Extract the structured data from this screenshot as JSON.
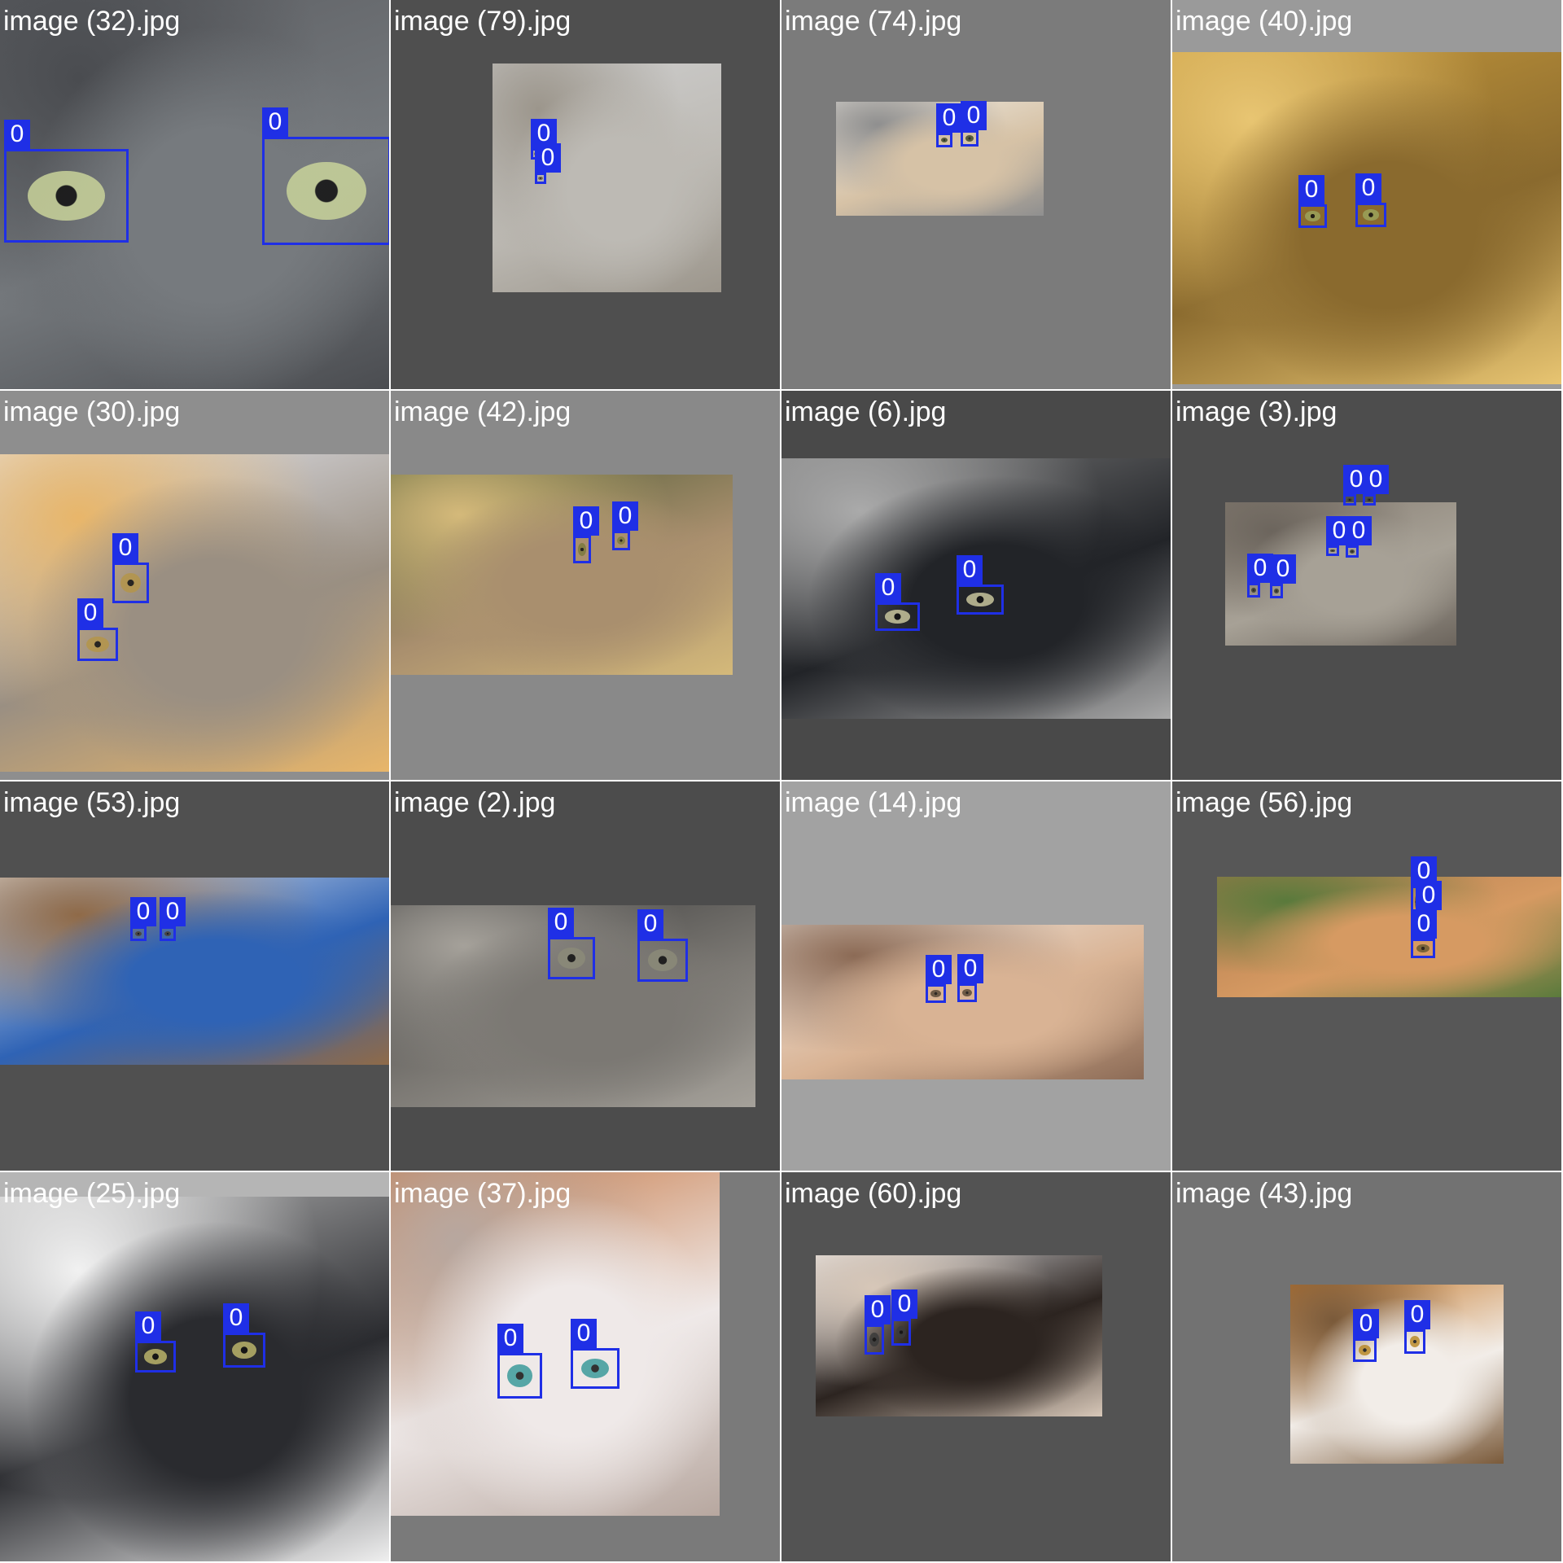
{
  "grid": {
    "cells": [
      {
        "caption": "image (32).jpg",
        "label_color": "#1f2fe6",
        "cell_bg": "#4e4e4e",
        "palette": [
          "#5c5e62",
          "#767a7e",
          "#4a4c50"
        ],
        "eye_color": "#c9d39a",
        "boxes": [
          {
            "label": "0"
          },
          {
            "label": "0"
          }
        ]
      },
      {
        "caption": "image (79).jpg",
        "label_color": "#1f2fe6",
        "cell_bg": "#4f4f4f",
        "palette": [
          "#cfcfcf",
          "#bdbab4",
          "#9c968c"
        ],
        "eye_color": "#6b6048",
        "boxes": [
          {
            "label": "0"
          },
          {
            "label": "0"
          }
        ]
      },
      {
        "caption": "image (74).jpg",
        "label_color": "#1f2fe6",
        "cell_bg": "#7b7b7b",
        "palette": [
          "#f1ede6",
          "#d6c2a6",
          "#8f8f8f"
        ],
        "eye_color": "#3f4a2a",
        "boxes": [
          {
            "label": "0"
          },
          {
            "label": "0"
          }
        ]
      },
      {
        "caption": "image (40).jpg",
        "label_color": "#1f2fe6",
        "cell_bg": "#9a9a9a",
        "palette": [
          "#c79a3c",
          "#8a6a2e",
          "#e8c572"
        ],
        "eye_color": "#9aa35a",
        "boxes": [
          {
            "label": "0"
          },
          {
            "label": "0"
          }
        ]
      },
      {
        "caption": "image (30).jpg",
        "label_color": "#1f2fe6",
        "cell_bg": "#8e8e8e",
        "palette": [
          "#e6e9f2",
          "#9a8f82",
          "#e8b66a"
        ],
        "eye_color": "#b4954a",
        "boxes": [
          {
            "label": "0"
          },
          {
            "label": "0"
          }
        ]
      },
      {
        "caption": "image (42).jpg",
        "label_color": "#1f2fe6",
        "cell_bg": "#898989",
        "palette": [
          "#4c5a33",
          "#a98f6e",
          "#d4b97a"
        ],
        "eye_color": "#7c7a3e",
        "boxes": [
          {
            "label": "0"
          },
          {
            "label": "0"
          }
        ]
      },
      {
        "caption": "image (6).jpg",
        "label_color": "#1f2fe6",
        "cell_bg": "#494949",
        "palette": [
          "#7d7d7d",
          "#222428",
          "#aaaaaa"
        ],
        "eye_color": "#c7c49c",
        "boxes": [
          {
            "label": "0"
          },
          {
            "label": "0"
          }
        ]
      },
      {
        "caption": "image (3).jpg",
        "label_color": "#1f2fe6",
        "cell_bg": "#4d4d4d",
        "palette": [
          "#867d72",
          "#a7a196",
          "#6c655d"
        ],
        "eye_color": "#3b3c2e",
        "boxes": [
          {
            "label": "0"
          },
          {
            "label": "0"
          },
          {
            "label": "0"
          },
          {
            "label": "0"
          },
          {
            "label": "0"
          },
          {
            "label": "0"
          }
        ]
      },
      {
        "caption": "image (53).jpg",
        "label_color": "#1f2fe6",
        "cell_bg": "#505050",
        "palette": [
          "#eef1f4",
          "#2f63b5",
          "#8f6a48"
        ],
        "eye_color": "#4a4034",
        "boxes": [
          {
            "label": "0"
          },
          {
            "label": "0"
          }
        ]
      },
      {
        "caption": "image (2).jpg",
        "label_color": "#1f2fe6",
        "cell_bg": "#4c4c4c",
        "palette": [
          "#3a3a3a",
          "#7b7873",
          "#a5a19a"
        ],
        "eye_color": "#8b8a78",
        "boxes": [
          {
            "label": "0"
          },
          {
            "label": "0"
          }
        ]
      },
      {
        "caption": "image (14).jpg",
        "label_color": "#1f2fe6",
        "cell_bg": "#a2a2a2",
        "palette": [
          "#f0ebe6",
          "#d9b394",
          "#8c6b56"
        ],
        "eye_color": "#5b4a38",
        "boxes": [
          {
            "label": "0"
          },
          {
            "label": "0"
          }
        ]
      },
      {
        "caption": "image (56).jpg",
        "label_color": "#1f2fe6",
        "cell_bg": "#575757",
        "palette": [
          "#b07a4e",
          "#d69a62",
          "#5a7a3c"
        ],
        "eye_color": "#6b5a30",
        "boxes": [
          {
            "label": "0"
          },
          {
            "label": "0"
          },
          {
            "label": "0"
          }
        ]
      },
      {
        "caption": "image (25).jpg",
        "label_color": "#1f2fe6",
        "cell_bg": "#b5b5b5",
        "palette": [
          "#b9b9b9",
          "#2a2b2f",
          "#f1f1f1"
        ],
        "eye_color": "#b9b36a",
        "boxes": [
          {
            "label": "0"
          },
          {
            "label": "0"
          }
        ]
      },
      {
        "caption": "image (37).jpg",
        "label_color": "#1f2fe6",
        "cell_bg": "#7a7a7a",
        "palette": [
          "#c77a48",
          "#efe9e8",
          "#b7a79f"
        ],
        "eye_color": "#3b9a9a",
        "boxes": [
          {
            "label": "0"
          },
          {
            "label": "0"
          }
        ]
      },
      {
        "caption": "image (60).jpg",
        "label_color": "#1f2fe6",
        "cell_bg": "#535353",
        "palette": [
          "#e9e9ec",
          "#2c2420",
          "#d7c7b8"
        ],
        "eye_color": "#3a3a3a",
        "boxes": [
          {
            "label": "0"
          },
          {
            "label": "0"
          }
        ]
      },
      {
        "caption": "image (43).jpg",
        "label_color": "#1f2fe6",
        "cell_bg": "#727272",
        "palette": [
          "#c67a2c",
          "#f2ede8",
          "#7a5a3a"
        ],
        "eye_color": "#b98a2a",
        "boxes": [
          {
            "label": "0"
          },
          {
            "label": "0"
          }
        ]
      }
    ]
  }
}
